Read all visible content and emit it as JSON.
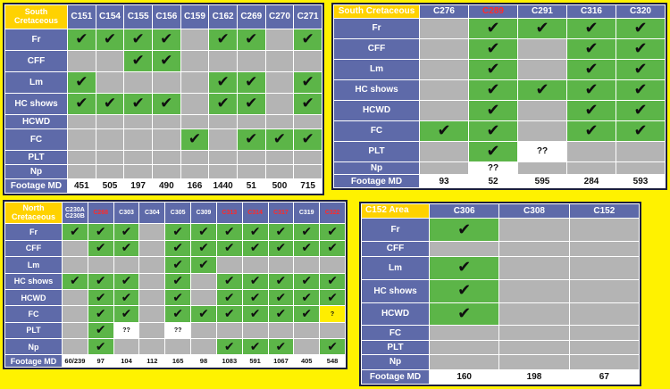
{
  "symbols": {
    "check": "✔",
    "unknown": "??",
    "question": "?"
  },
  "colors": {
    "background": "#fff200",
    "panel_border": "#1c1f3a",
    "header": "#5e6aa9",
    "corner": "#ffd200",
    "present": "#5cb548",
    "absent": "#b4b4b4",
    "highlight": "#ffee00",
    "red_label": "#ff2a2a"
  },
  "tables": [
    {
      "id": "south-cretaceous-1",
      "title": "South Cretaceous",
      "columns": [
        {
          "label": "C151"
        },
        {
          "label": "C154"
        },
        {
          "label": "C155"
        },
        {
          "label": "C156"
        },
        {
          "label": "C159"
        },
        {
          "label": "C162"
        },
        {
          "label": "C269"
        },
        {
          "label": "C270"
        },
        {
          "label": "C271"
        }
      ],
      "rows": [
        {
          "label": "Fr",
          "cells": [
            "c",
            "c",
            "c",
            "c",
            "x",
            "c",
            "c",
            "x",
            "c"
          ]
        },
        {
          "label": "CFF",
          "cells": [
            "x",
            "x",
            "c",
            "c",
            "x",
            "x",
            "x",
            "x",
            "x"
          ]
        },
        {
          "label": "Lm",
          "cells": [
            "c",
            "x",
            "x",
            "x",
            "x",
            "c",
            "c",
            "x",
            "c"
          ]
        },
        {
          "label": "HC shows",
          "cells": [
            "c",
            "c",
            "c",
            "c",
            "x",
            "c",
            "c",
            "x",
            "c"
          ]
        },
        {
          "label": "HCWD",
          "cells": [
            "x",
            "x",
            "x",
            "x",
            "x",
            "x",
            "x",
            "x",
            "x"
          ]
        },
        {
          "label": "FC",
          "cells": [
            "x",
            "x",
            "x",
            "x",
            "c",
            "x",
            "c",
            "c",
            "c"
          ]
        },
        {
          "label": "PLT",
          "cells": [
            "x",
            "x",
            "x",
            "x",
            "x",
            "x",
            "x",
            "x",
            "x"
          ]
        },
        {
          "label": "Np",
          "cells": [
            "x",
            "x",
            "x",
            "x",
            "x",
            "x",
            "x",
            "x",
            "x"
          ]
        }
      ],
      "footer": {
        "label": "Footage MD",
        "values": [
          "451",
          "505",
          "197",
          "490",
          "166",
          "1440",
          "51",
          "500",
          "715"
        ]
      }
    },
    {
      "id": "south-cretaceous-2",
      "title": "South Cretaceous",
      "columns": [
        {
          "label": "C276"
        },
        {
          "label": "C289",
          "red": true
        },
        {
          "label": "C291"
        },
        {
          "label": "C316"
        },
        {
          "label": "C320"
        }
      ],
      "rows": [
        {
          "label": "Fr",
          "cells": [
            "x",
            "c",
            "c",
            "c",
            "c"
          ]
        },
        {
          "label": "CFF",
          "cells": [
            "x",
            "c",
            "x",
            "c",
            "c"
          ]
        },
        {
          "label": "Lm",
          "cells": [
            "x",
            "c",
            "x",
            "c",
            "c"
          ]
        },
        {
          "label": "HC shows",
          "cells": [
            "x",
            "c",
            "c",
            "c",
            "c"
          ]
        },
        {
          "label": "HCWD",
          "cells": [
            "x",
            "c",
            "x",
            "c",
            "c"
          ]
        },
        {
          "label": "FC",
          "cells": [
            "c",
            "c",
            "x",
            "c",
            "c"
          ]
        },
        {
          "label": "PLT",
          "cells": [
            "x",
            "c",
            "u",
            "x",
            "x"
          ]
        },
        {
          "label": "Np",
          "cells": [
            "x",
            "u",
            "x",
            "x",
            "x"
          ]
        }
      ],
      "footer": {
        "label": "Footage MD",
        "values": [
          "93",
          "52",
          "595",
          "284",
          "593"
        ]
      }
    },
    {
      "id": "north-cretaceous",
      "title": "North Cretaceous",
      "columns": [
        {
          "label": "C230A C230B"
        },
        {
          "label": "C268",
          "red": true
        },
        {
          "label": "C303"
        },
        {
          "label": "C304"
        },
        {
          "label": "C305"
        },
        {
          "label": "C309"
        },
        {
          "label": "C313",
          "red": true
        },
        {
          "label": "C314",
          "red": true
        },
        {
          "label": "C317",
          "red": true
        },
        {
          "label": "C319"
        },
        {
          "label": "C322",
          "red": true
        }
      ],
      "rows": [
        {
          "label": "Fr",
          "cells": [
            "c",
            "c",
            "c",
            "x",
            "c",
            "c",
            "c",
            "c",
            "c",
            "c",
            "c"
          ]
        },
        {
          "label": "CFF",
          "cells": [
            "x",
            "c",
            "c",
            "x",
            "c",
            "c",
            "c",
            "c",
            "c",
            "c",
            "c"
          ]
        },
        {
          "label": "Lm",
          "cells": [
            "x",
            "x",
            "x",
            "x",
            "c",
            "c",
            "x",
            "x",
            "x",
            "x",
            "x"
          ]
        },
        {
          "label": "HC shows",
          "cells": [
            "c",
            "c",
            "c",
            "x",
            "c",
            "x",
            "c",
            "c",
            "c",
            "c",
            "c"
          ]
        },
        {
          "label": "HCWD",
          "cells": [
            "x",
            "c",
            "c",
            "x",
            "c",
            "x",
            "c",
            "c",
            "c",
            "c",
            "c"
          ]
        },
        {
          "label": "FC",
          "cells": [
            "x",
            "c",
            "c",
            "x",
            "c",
            "c",
            "c",
            "c",
            "c",
            "c",
            "q"
          ]
        },
        {
          "label": "PLT",
          "cells": [
            "x",
            "c",
            "u",
            "x",
            "u",
            "x",
            "x",
            "x",
            "x",
            "x",
            "x"
          ]
        },
        {
          "label": "Np",
          "cells": [
            "x",
            "c",
            "x",
            "x",
            "x",
            "x",
            "c",
            "c",
            "c",
            "x",
            "c"
          ]
        }
      ],
      "footer": {
        "label": "Footage MD",
        "values": [
          "60/239",
          "97",
          "104",
          "112",
          "165",
          "98",
          "1083",
          "591",
          "1067",
          "405",
          "548"
        ]
      }
    },
    {
      "id": "c152-area",
      "title": "C152 Area",
      "columns": [
        {
          "label": "C306"
        },
        {
          "label": "C308"
        },
        {
          "label": "C152"
        }
      ],
      "rows": [
        {
          "label": "Fr",
          "cells": [
            "c",
            "x",
            "x"
          ]
        },
        {
          "label": "CFF",
          "cells": [
            "x",
            "x",
            "x"
          ]
        },
        {
          "label": "Lm",
          "cells": [
            "c",
            "x",
            "x"
          ]
        },
        {
          "label": "HC shows",
          "cells": [
            "c",
            "x",
            "x"
          ]
        },
        {
          "label": "HCWD",
          "cells": [
            "c",
            "x",
            "x"
          ]
        },
        {
          "label": "FC",
          "cells": [
            "x",
            "x",
            "x"
          ]
        },
        {
          "label": "PLT",
          "cells": [
            "x",
            "x",
            "x"
          ]
        },
        {
          "label": "Np",
          "cells": [
            "x",
            "x",
            "x"
          ]
        }
      ],
      "footer": {
        "label": "Footage MD",
        "values": [
          "160",
          "198",
          "67"
        ]
      }
    }
  ]
}
